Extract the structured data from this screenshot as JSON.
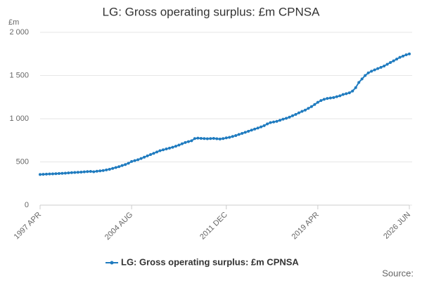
{
  "chart_data": {
    "type": "line",
    "title": "LG: Gross operating surplus: £m CPNSA",
    "y_label": "£m",
    "source": "Source:",
    "categories": [
      "1997 APR",
      null,
      null,
      null,
      null,
      null,
      null,
      null,
      null,
      null,
      null,
      null,
      null,
      null,
      null,
      null,
      null,
      null,
      null,
      null,
      null,
      null,
      null,
      null,
      null,
      null,
      null,
      null,
      null,
      "2004 AUG",
      null,
      null,
      null,
      null,
      null,
      null,
      null,
      null,
      null,
      null,
      null,
      null,
      null,
      null,
      null,
      null,
      null,
      null,
      null,
      null,
      null,
      null,
      null,
      null,
      null,
      null,
      null,
      null,
      null,
      "2011 DEC",
      null,
      null,
      null,
      null,
      null,
      null,
      null,
      null,
      null,
      null,
      null,
      null,
      null,
      null,
      null,
      null,
      null,
      null,
      null,
      null,
      null,
      null,
      null,
      null,
      null,
      null,
      null,
      null,
      "2019 APR",
      null,
      null,
      null,
      null,
      null,
      null,
      null,
      null,
      null,
      null,
      null,
      null,
      null,
      null,
      null,
      null,
      null,
      null,
      null,
      null,
      null,
      null,
      null,
      null,
      null,
      null,
      null,
      null,
      "2026 JUN"
    ],
    "series": [
      {
        "name": "LG: Gross operating surplus: £m CPNSA",
        "color": "#1f7bbf",
        "values": [
          355,
          357,
          359,
          361,
          362,
          364,
          366,
          368,
          370,
          373,
          376,
          378,
          380,
          382,
          385,
          388,
          390,
          386,
          392,
          396,
          400,
          408,
          415,
          425,
          435,
          445,
          458,
          470,
          485,
          505,
          515,
          525,
          540,
          555,
          570,
          585,
          600,
          615,
          630,
          640,
          650,
          660,
          670,
          682,
          695,
          710,
          725,
          735,
          745,
          770,
          775,
          772,
          770,
          768,
          770,
          772,
          768,
          765,
          770,
          778,
          785,
          795,
          805,
          818,
          830,
          842,
          855,
          868,
          880,
          892,
          905,
          920,
          940,
          955,
          962,
          970,
          982,
          995,
          1005,
          1018,
          1035,
          1050,
          1068,
          1085,
          1100,
          1120,
          1140,
          1165,
          1190,
          1210,
          1225,
          1235,
          1240,
          1245,
          1255,
          1265,
          1280,
          1290,
          1300,
          1320,
          1360,
          1420,
          1460,
          1500,
          1530,
          1550,
          1565,
          1580,
          1595,
          1610,
          1630,
          1650,
          1670,
          1690,
          1710,
          1725,
          1740,
          1750
        ]
      }
    ],
    "ylim": [
      0,
      2000
    ],
    "yticks": [
      0,
      500,
      {
        "value": 1000,
        "label": "1 000"
      },
      {
        "value": 1500,
        "label": "1 500"
      },
      {
        "value": 2000,
        "label": "2 000"
      }
    ],
    "grid": true,
    "legend": "bottom"
  }
}
